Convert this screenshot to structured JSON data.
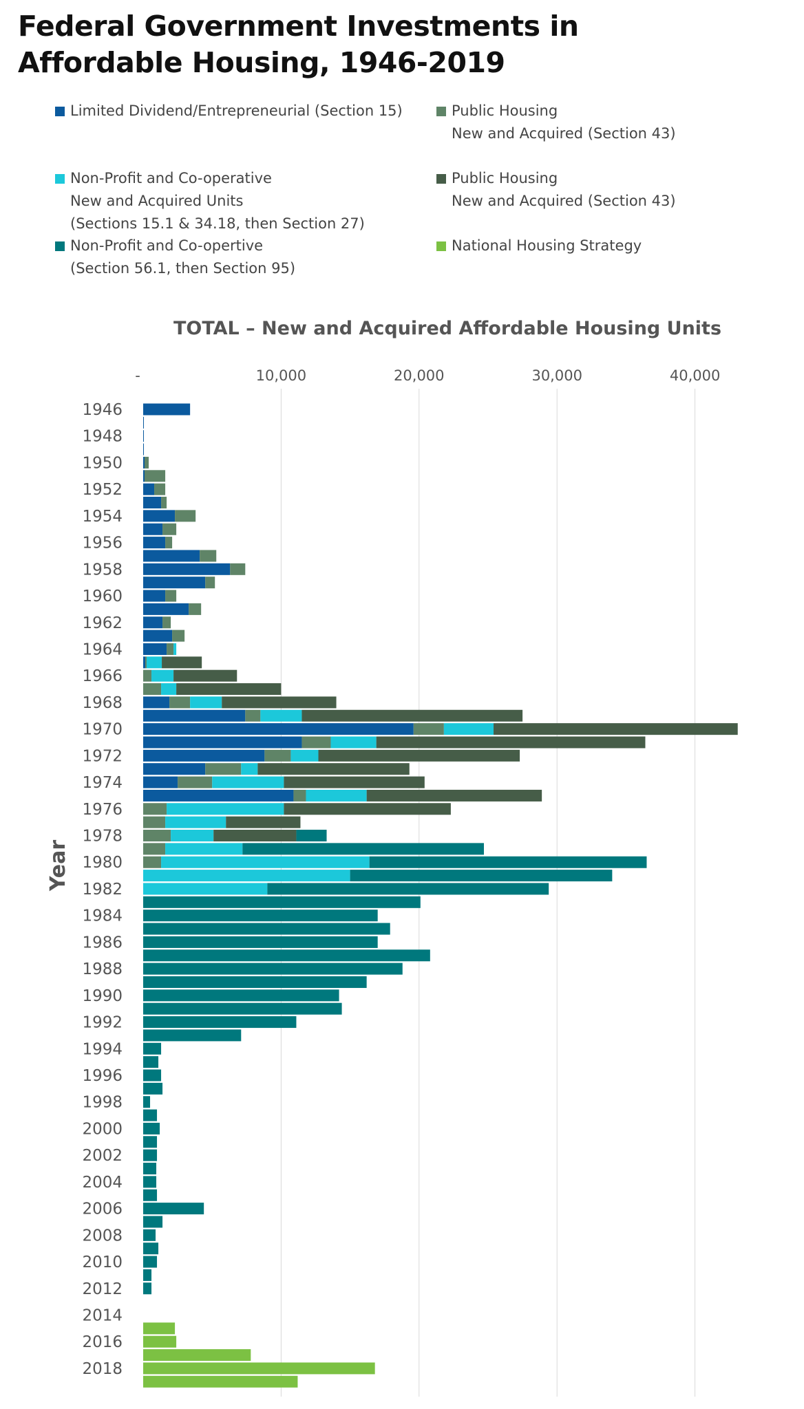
{
  "page": {
    "title_line1": "Federal Government Investments in",
    "title_line2": "Affordable Housing, 1946-2019"
  },
  "legend": [
    {
      "label": "Limited Dividend/Entrepreneurial (Section 15)",
      "color": "#0b5a9e"
    },
    {
      "label": "Public Housing\nNew and Acquired (Section 43)",
      "color": "#5f8467"
    },
    {
      "label": "Non-Profit and Co-operative\nNew and Acquired Units\n(Sections 15.1 & 34.18, then Section 27)",
      "color": "#1cc8da"
    },
    {
      "label": "Public Housing\nNew and Acquired (Section 43)",
      "color": "#465d48"
    },
    {
      "label": "Non-Profit and Co-opertive\n(Section 56.1, then Section 95)",
      "color": "#00787d"
    },
    {
      "label": "National Housing Strategy",
      "color": "#7cc143"
    }
  ],
  "chart_data": {
    "type": "bar",
    "orientation": "horizontal",
    "stacked": true,
    "title": "TOTAL – New and Acquired Affordable Housing Units",
    "ylabel": "Year",
    "xlabel": "",
    "xlim": [
      0,
      43500
    ],
    "x_ticks": [
      0,
      10000,
      20000,
      30000,
      40000
    ],
    "x_tick_labels": [
      "-",
      "10,000",
      "20,000",
      "30,000",
      "40,000"
    ],
    "x_axis_position": "top",
    "grid": true,
    "categories": [
      "1946",
      "1947",
      "1948",
      "1949",
      "1950",
      "1951",
      "1952",
      "1953",
      "1954",
      "1955",
      "1956",
      "1957",
      "1958",
      "1959",
      "1960",
      "1961",
      "1962",
      "1963",
      "1964",
      "1965",
      "1966",
      "1967",
      "1968",
      "1969",
      "1970",
      "1971",
      "1972",
      "1973",
      "1974",
      "1975",
      "1976",
      "1977",
      "1978",
      "1979",
      "1980",
      "1981",
      "1982",
      "1983",
      "1984",
      "1985",
      "1986",
      "1987",
      "1988",
      "1989",
      "1990",
      "1991",
      "1992",
      "1993",
      "1994",
      "1995",
      "1996",
      "1997",
      "1998",
      "1999",
      "2000",
      "2001",
      "2002",
      "2003",
      "2004",
      "2005",
      "2006",
      "2007",
      "2008",
      "2009",
      "2010",
      "2011",
      "2012",
      "2013",
      "2014",
      "2015",
      "2016",
      "2017",
      "2018",
      "2019"
    ],
    "y_tick_labels": [
      "1946",
      "1948",
      "1950",
      "1952",
      "1954",
      "1956",
      "1958",
      "1960",
      "1962",
      "1964",
      "1966",
      "1968",
      "1970",
      "1972",
      "1974",
      "1976",
      "1978",
      "1980",
      "1982",
      "1984",
      "1986",
      "1988",
      "1990",
      "1992",
      "1994",
      "1996",
      "1998",
      "2000",
      "2002",
      "2004",
      "2006",
      "2008",
      "2010",
      "2012",
      "2014",
      "2016",
      "2018"
    ],
    "series": [
      {
        "name": "Limited Dividend/Entrepreneurial (Section 15)",
        "color": "#0b5a9e",
        "values": [
          3400,
          50,
          50,
          50,
          100,
          100,
          800,
          1300,
          2300,
          1400,
          1600,
          4100,
          6300,
          4500,
          1600,
          3300,
          1400,
          2100,
          1700,
          150,
          0,
          0,
          1900,
          7400,
          19600,
          11500,
          8800,
          4500,
          2500,
          10900,
          0,
          0,
          0,
          0,
          0,
          0,
          0,
          0,
          0,
          0,
          0,
          0,
          0,
          0,
          0,
          0,
          0,
          0,
          0,
          0,
          0,
          0,
          0,
          0,
          0,
          0,
          0,
          0,
          0,
          0,
          0,
          0,
          0,
          0,
          0,
          0,
          0,
          0,
          0,
          0,
          0,
          0,
          0,
          0
        ]
      },
      {
        "name": "Public Housing New and Acquired (Section 43)",
        "color": "#5f8467",
        "values": [
          0,
          0,
          0,
          0,
          300,
          1500,
          800,
          400,
          1500,
          1000,
          500,
          1200,
          1100,
          700,
          800,
          900,
          600,
          900,
          500,
          100,
          600,
          1300,
          1500,
          1100,
          2200,
          2100,
          1900,
          2600,
          2500,
          900,
          1700,
          1600,
          2000,
          1600,
          1300,
          0,
          0,
          0,
          0,
          0,
          0,
          0,
          0,
          0,
          0,
          0,
          0,
          0,
          0,
          0,
          0,
          0,
          0,
          0,
          0,
          0,
          0,
          0,
          0,
          0,
          0,
          0,
          0,
          0,
          0,
          0,
          0,
          0,
          0,
          0,
          0,
          0,
          0,
          0
        ]
      },
      {
        "name": "Non-Profit and Co-operative New and Acquired Units (Sections 15.1 & 34.18, then Section 27)",
        "color": "#1cc8da",
        "values": [
          0,
          0,
          0,
          0,
          0,
          0,
          0,
          0,
          0,
          0,
          0,
          0,
          0,
          0,
          0,
          0,
          0,
          0,
          200,
          1100,
          1600,
          1100,
          2300,
          3000,
          3600,
          3300,
          2000,
          1200,
          5200,
          4400,
          8500,
          4400,
          3100,
          5600,
          15100,
          15000,
          9000,
          0,
          0,
          0,
          0,
          0,
          0,
          0,
          0,
          0,
          0,
          0,
          0,
          0,
          0,
          0,
          0,
          0,
          0,
          0,
          0,
          0,
          0,
          0,
          0,
          0,
          0,
          0,
          0,
          0,
          0,
          0,
          0,
          0,
          0,
          0,
          0,
          0
        ]
      },
      {
        "name": "Public Housing New and Acquired (Section 43)",
        "color": "#465d48",
        "values": [
          0,
          0,
          0,
          0,
          0,
          0,
          0,
          0,
          0,
          0,
          0,
          0,
          0,
          0,
          0,
          0,
          0,
          0,
          0,
          2900,
          4600,
          7600,
          8300,
          16000,
          17700,
          19500,
          14600,
          11000,
          10200,
          12700,
          12100,
          5400,
          6000,
          0,
          0,
          0,
          0,
          0,
          0,
          0,
          0,
          0,
          0,
          0,
          0,
          0,
          0,
          0,
          0,
          0,
          0,
          0,
          0,
          0,
          0,
          0,
          0,
          0,
          0,
          0,
          0,
          0,
          0,
          0,
          0,
          0,
          0,
          0,
          0,
          0,
          0,
          0,
          0,
          0
        ]
      },
      {
        "name": "Non-Profit and Co-opertive (Section 56.1, then Section 95)",
        "color": "#00787d",
        "values": [
          0,
          0,
          0,
          0,
          0,
          0,
          0,
          0,
          0,
          0,
          0,
          0,
          0,
          0,
          0,
          0,
          0,
          0,
          0,
          0,
          0,
          0,
          0,
          0,
          0,
          0,
          0,
          0,
          0,
          0,
          0,
          0,
          2200,
          17500,
          20100,
          19000,
          20400,
          20100,
          17000,
          17900,
          17000,
          20800,
          18800,
          16200,
          14200,
          14400,
          11100,
          7100,
          1300,
          1100,
          1300,
          1400,
          500,
          1000,
          1200,
          1000,
          1000,
          950,
          950,
          1000,
          4400,
          1400,
          900,
          1100,
          1000,
          600,
          600,
          0,
          0,
          0,
          0,
          0,
          0,
          0
        ]
      },
      {
        "name": "National Housing Strategy",
        "color": "#7cc143",
        "values": [
          0,
          0,
          0,
          0,
          0,
          0,
          0,
          0,
          0,
          0,
          0,
          0,
          0,
          0,
          0,
          0,
          0,
          0,
          0,
          0,
          0,
          0,
          0,
          0,
          0,
          0,
          0,
          0,
          0,
          0,
          0,
          0,
          0,
          0,
          0,
          0,
          0,
          0,
          0,
          0,
          0,
          0,
          0,
          0,
          0,
          0,
          0,
          0,
          0,
          0,
          0,
          0,
          0,
          0,
          0,
          0,
          0,
          0,
          0,
          0,
          0,
          0,
          0,
          0,
          0,
          0,
          0,
          0,
          0,
          2300,
          2400,
          7800,
          16800,
          11200
        ]
      }
    ]
  }
}
